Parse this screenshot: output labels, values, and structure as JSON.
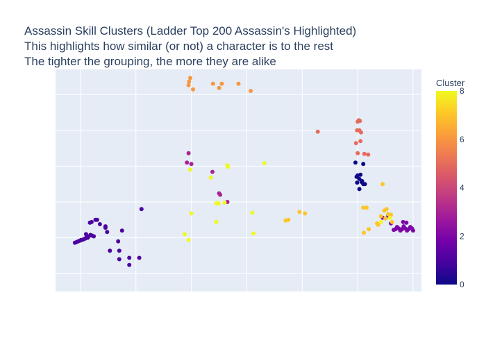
{
  "chart_data": {
    "type": "scatter",
    "title_lines": [
      "Assassin Skill Clusters (Ladder Top 200 Assassin's Highlighted)",
      "This highlights how similar (or not) a character is to the rest",
      "The tighter the grouping, the more they are alike"
    ],
    "xlabel": "",
    "ylabel": "",
    "xlim": [
      -0.45,
      6.15
    ],
    "ylim": [
      -0.25,
      2.85
    ],
    "grid": true,
    "colorbar": {
      "title": "Cluster",
      "range": [
        0,
        8
      ],
      "ticks": [
        0,
        2,
        4,
        6,
        8
      ],
      "colorscale": [
        "#0d0887",
        "#46039f",
        "#7201a8",
        "#9c179e",
        "#bd3786",
        "#d8576b",
        "#ed7953",
        "#fb9f3a",
        "#fdca26",
        "#f0f921"
      ]
    },
    "points": [
      {
        "x": -0.1,
        "y": 0.43,
        "c": 1
      },
      {
        "x": -0.07,
        "y": 0.44,
        "c": 1
      },
      {
        "x": -0.04,
        "y": 0.45,
        "c": 1
      },
      {
        "x": -0.01,
        "y": 0.46,
        "c": 1
      },
      {
        "x": 0.01,
        "y": 0.47,
        "c": 1
      },
      {
        "x": 0.03,
        "y": 0.47,
        "c": 1
      },
      {
        "x": 0.06,
        "y": 0.48,
        "c": 1
      },
      {
        "x": 0.09,
        "y": 0.49,
        "c": 1
      },
      {
        "x": 0.11,
        "y": 0.51,
        "c": 1
      },
      {
        "x": 0.13,
        "y": 0.5,
        "c": 1
      },
      {
        "x": 0.15,
        "y": 0.52,
        "c": 1
      },
      {
        "x": 0.18,
        "y": 0.54,
        "c": 1
      },
      {
        "x": 0.21,
        "y": 0.53,
        "c": 1
      },
      {
        "x": 0.24,
        "y": 0.52,
        "c": 1
      },
      {
        "x": 0.1,
        "y": 0.55,
        "c": 1
      },
      {
        "x": 0.17,
        "y": 0.71,
        "c": 1
      },
      {
        "x": 0.2,
        "y": 0.72,
        "c": 1
      },
      {
        "x": 0.27,
        "y": 0.75,
        "c": 1
      },
      {
        "x": 0.3,
        "y": 0.75,
        "c": 1
      },
      {
        "x": 0.35,
        "y": 0.69,
        "c": 1
      },
      {
        "x": 0.45,
        "y": 0.66,
        "c": 1
      },
      {
        "x": 0.45,
        "y": 0.64,
        "c": 1
      },
      {
        "x": 0.48,
        "y": 0.58,
        "c": 1
      },
      {
        "x": 0.75,
        "y": 0.6,
        "c": 1
      },
      {
        "x": 0.68,
        "y": 0.45,
        "c": 1
      },
      {
        "x": 0.53,
        "y": 0.32,
        "c": 1
      },
      {
        "x": 0.7,
        "y": 0.32,
        "c": 1
      },
      {
        "x": 0.7,
        "y": 0.2,
        "c": 1
      },
      {
        "x": 0.88,
        "y": 0.22,
        "c": 1
      },
      {
        "x": 1.06,
        "y": 0.22,
        "c": 1
      },
      {
        "x": 0.88,
        "y": 0.12,
        "c": 1
      },
      {
        "x": 1.1,
        "y": 0.9,
        "c": 1
      },
      {
        "x": 6.0,
        "y": 0.6,
        "c": 2
      },
      {
        "x": 5.98,
        "y": 0.63,
        "c": 2
      },
      {
        "x": 5.95,
        "y": 0.65,
        "c": 2
      },
      {
        "x": 5.92,
        "y": 0.62,
        "c": 2
      },
      {
        "x": 5.89,
        "y": 0.6,
        "c": 2
      },
      {
        "x": 5.86,
        "y": 0.63,
        "c": 2
      },
      {
        "x": 5.83,
        "y": 0.66,
        "c": 2
      },
      {
        "x": 5.8,
        "y": 0.62,
        "c": 2
      },
      {
        "x": 5.77,
        "y": 0.6,
        "c": 2
      },
      {
        "x": 5.74,
        "y": 0.63,
        "c": 2
      },
      {
        "x": 5.71,
        "y": 0.65,
        "c": 2
      },
      {
        "x": 5.68,
        "y": 0.62,
        "c": 2
      },
      {
        "x": 5.65,
        "y": 0.61,
        "c": 2
      },
      {
        "x": 5.88,
        "y": 0.71,
        "c": 2
      },
      {
        "x": 5.82,
        "y": 0.72,
        "c": 2
      },
      {
        "x": 5.6,
        "y": 0.7,
        "c": 2
      },
      {
        "x": 5.55,
        "y": 0.8,
        "c": 2
      },
      {
        "x": 5.45,
        "y": 0.78,
        "c": 2
      },
      {
        "x": 1.95,
        "y": 1.68,
        "c": 3
      },
      {
        "x": 1.92,
        "y": 1.55,
        "c": 3
      },
      {
        "x": 2.0,
        "y": 1.53,
        "c": 3
      },
      {
        "x": 2.38,
        "y": 1.42,
        "c": 3
      },
      {
        "x": 2.5,
        "y": 1.12,
        "c": 3
      },
      {
        "x": 2.52,
        "y": 1.1,
        "c": 3
      },
      {
        "x": 2.65,
        "y": 1.0,
        "c": 3
      },
      {
        "x": 4.96,
        "y": 1.55,
        "c": 0
      },
      {
        "x": 5.1,
        "y": 1.53,
        "c": 0
      },
      {
        "x": 5.0,
        "y": 1.37,
        "c": 0
      },
      {
        "x": 5.05,
        "y": 1.38,
        "c": 0
      },
      {
        "x": 4.98,
        "y": 1.35,
        "c": 0
      },
      {
        "x": 5.03,
        "y": 1.32,
        "c": 0
      },
      {
        "x": 4.99,
        "y": 1.27,
        "c": 0
      },
      {
        "x": 5.07,
        "y": 1.28,
        "c": 0
      },
      {
        "x": 5.1,
        "y": 1.25,
        "c": 0
      },
      {
        "x": 5.13,
        "y": 1.25,
        "c": 0
      },
      {
        "x": 5.08,
        "y": 1.29,
        "c": 0
      },
      {
        "x": 5.03,
        "y": 1.18,
        "c": 0
      },
      {
        "x": 5.0,
        "y": 2.12,
        "c": 5
      },
      {
        "x": 5.02,
        "y": 2.14,
        "c": 5
      },
      {
        "x": 5.04,
        "y": 2.13,
        "c": 5
      },
      {
        "x": 4.99,
        "y": 2.0,
        "c": 5
      },
      {
        "x": 5.03,
        "y": 2.0,
        "c": 5
      },
      {
        "x": 5.06,
        "y": 1.97,
        "c": 5
      },
      {
        "x": 5.05,
        "y": 1.85,
        "c": 5
      },
      {
        "x": 4.97,
        "y": 1.82,
        "c": 5
      },
      {
        "x": 5.0,
        "y": 1.68,
        "c": 5
      },
      {
        "x": 5.12,
        "y": 1.67,
        "c": 5
      },
      {
        "x": 5.19,
        "y": 1.66,
        "c": 5
      },
      {
        "x": 4.28,
        "y": 1.98,
        "c": 5
      },
      {
        "x": 1.98,
        "y": 2.73,
        "c": 6
      },
      {
        "x": 1.96,
        "y": 2.68,
        "c": 6
      },
      {
        "x": 1.95,
        "y": 2.63,
        "c": 6
      },
      {
        "x": 2.03,
        "y": 2.57,
        "c": 6
      },
      {
        "x": 2.39,
        "y": 2.65,
        "c": 6
      },
      {
        "x": 2.55,
        "y": 2.65,
        "c": 6
      },
      {
        "x": 2.5,
        "y": 2.59,
        "c": 6
      },
      {
        "x": 2.85,
        "y": 2.65,
        "c": 6
      },
      {
        "x": 3.07,
        "y": 2.55,
        "c": 6
      },
      {
        "x": 3.7,
        "y": 0.74,
        "c": 7
      },
      {
        "x": 3.75,
        "y": 0.75,
        "c": 7
      },
      {
        "x": 4.05,
        "y": 0.84,
        "c": 7
      },
      {
        "x": 3.95,
        "y": 0.86,
        "c": 7
      },
      {
        "x": 5.1,
        "y": 0.92,
        "c": 7
      },
      {
        "x": 5.16,
        "y": 0.92,
        "c": 7
      },
      {
        "x": 5.2,
        "y": 0.62,
        "c": 7
      },
      {
        "x": 5.11,
        "y": 0.57,
        "c": 7
      },
      {
        "x": 5.35,
        "y": 0.7,
        "c": 7
      },
      {
        "x": 5.37,
        "y": 0.68,
        "c": 7
      },
      {
        "x": 5.42,
        "y": 0.8,
        "c": 7
      },
      {
        "x": 5.5,
        "y": 0.77,
        "c": 7
      },
      {
        "x": 5.55,
        "y": 0.83,
        "c": 7
      },
      {
        "x": 5.6,
        "y": 0.82,
        "c": 7
      },
      {
        "x": 5.48,
        "y": 0.88,
        "c": 7
      },
      {
        "x": 5.52,
        "y": 0.9,
        "c": 7
      },
      {
        "x": 5.62,
        "y": 0.72,
        "c": 7
      },
      {
        "x": 5.45,
        "y": 1.25,
        "c": 7
      },
      {
        "x": 1.98,
        "y": 1.45,
        "c": 8
      },
      {
        "x": 2.35,
        "y": 1.34,
        "c": 8
      },
      {
        "x": 2.65,
        "y": 1.51,
        "c": 8
      },
      {
        "x": 2.66,
        "y": 1.49,
        "c": 8
      },
      {
        "x": 3.32,
        "y": 1.54,
        "c": 8
      },
      {
        "x": 2.45,
        "y": 0.98,
        "c": 8
      },
      {
        "x": 2.47,
        "y": 0.98,
        "c": 8
      },
      {
        "x": 2.49,
        "y": 0.98,
        "c": 8
      },
      {
        "x": 2.6,
        "y": 0.99,
        "c": 8
      },
      {
        "x": 2.0,
        "y": 0.84,
        "c": 8
      },
      {
        "x": 3.1,
        "y": 0.85,
        "c": 8
      },
      {
        "x": 2.45,
        "y": 0.72,
        "c": 8
      },
      {
        "x": 1.88,
        "y": 0.55,
        "c": 8
      },
      {
        "x": 1.95,
        "y": 0.47,
        "c": 8
      },
      {
        "x": 3.12,
        "y": 0.56,
        "c": 8
      },
      {
        "x": 5.42,
        "y": 0.72,
        "c": 8
      },
      {
        "x": 5.58,
        "y": 0.78,
        "c": 8
      }
    ]
  }
}
